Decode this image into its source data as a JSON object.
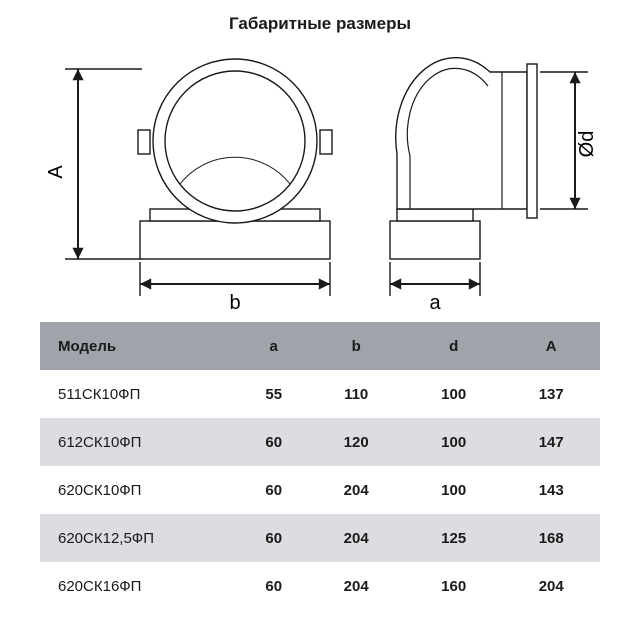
{
  "title": "Габаритные размеры",
  "diagram": {
    "labels": {
      "A": "A",
      "b": "b",
      "a": "a",
      "d": "Ød"
    },
    "stroke": "#1a1a1a",
    "fill": "#ffffff",
    "line_width": 1.4,
    "arrow_width": 2
  },
  "table": {
    "header_bg": "#9fa4aa",
    "alt_bg": "#dbdde0",
    "columns": [
      "Модель",
      "a",
      "b",
      "d",
      "A"
    ],
    "rows": [
      {
        "model": "511СК10ФП",
        "a": "55",
        "b": "110",
        "d": "100",
        "A": "137",
        "alt": false
      },
      {
        "model": "612СК10ФП",
        "a": "60",
        "b": "120",
        "d": "100",
        "A": "147",
        "alt": true
      },
      {
        "model": "620СК10ФП",
        "a": "60",
        "b": "204",
        "d": "100",
        "A": "143",
        "alt": false
      },
      {
        "model": "620СК12,5ФП",
        "a": "60",
        "b": "204",
        "d": "125",
        "A": "168",
        "alt": true
      },
      {
        "model": "620СК16ФП",
        "a": "60",
        "b": "204",
        "d": "160",
        "A": "204",
        "alt": false
      }
    ]
  }
}
